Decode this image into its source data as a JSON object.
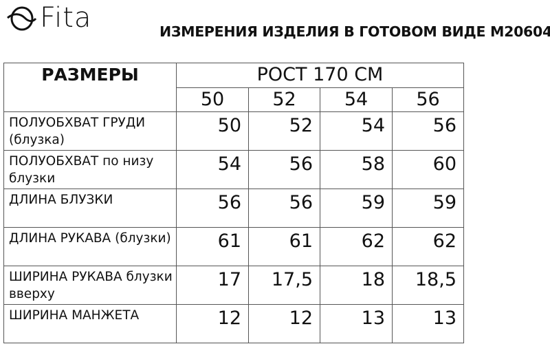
{
  "brand": {
    "logo_text": "Fita"
  },
  "title": "ИЗМЕРЕНИЯ ИЗДЕЛИЯ В ГОТОВОМ ВИДЕ М20604",
  "table": {
    "header_label": "РАЗМЕРЫ",
    "height_label": "РОСТ 170 СМ",
    "sizes": [
      "50",
      "52",
      "54",
      "56"
    ],
    "rows": [
      {
        "label": "ПОЛУОБХВАТ ГРУДИ (блузка)",
        "values": [
          "50",
          "52",
          "54",
          "56"
        ]
      },
      {
        "label": "ПОЛУОБХВАТ по низу блузки",
        "values": [
          "54",
          "56",
          "58",
          "60"
        ]
      },
      {
        "label": "ДЛИНА БЛУЗКИ",
        "values": [
          "56",
          "56",
          "59",
          "59"
        ]
      },
      {
        "label": "ДЛИНА РУКАВА (блузки)",
        "values": [
          "61",
          "61",
          "62",
          "62"
        ]
      },
      {
        "label": "ШИРИНА РУКАВА блузки вверху",
        "values": [
          "17",
          "17,5",
          "18",
          "18,5"
        ]
      },
      {
        "label": "ШИРИНА МАНЖЕТА",
        "values": [
          "12",
          "12",
          "13",
          "13"
        ]
      }
    ]
  }
}
